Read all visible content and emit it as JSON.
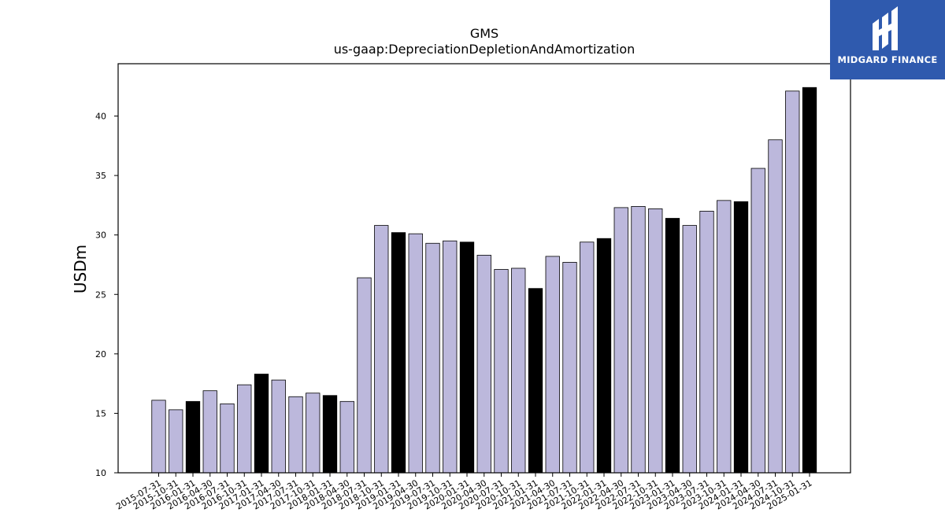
{
  "chart_data": {
    "type": "bar",
    "title": "GMS",
    "subtitle": "us-gaap:DepreciationDepletionAndAmortization",
    "xlabel": "",
    "ylabel": "USDm",
    "ylim": [
      10,
      44.4
    ],
    "yticks": [
      10,
      15,
      20,
      25,
      30,
      35,
      40
    ],
    "categories": [
      "2015-07-31",
      "2015-10-31",
      "2016-01-31",
      "2016-04-30",
      "2016-07-31",
      "2016-10-31",
      "2017-01-31",
      "2017-04-30",
      "2017-07-31",
      "2017-10-31",
      "2018-01-31",
      "2018-04-30",
      "2018-07-31",
      "2018-10-31",
      "2019-01-31",
      "2019-04-30",
      "2019-07-31",
      "2019-10-31",
      "2020-01-31",
      "2020-04-30",
      "2020-07-31",
      "2020-10-31",
      "2021-01-31",
      "2021-04-30",
      "2021-07-31",
      "2021-10-31",
      "2022-01-31",
      "2022-04-30",
      "2022-07-31",
      "2022-10-31",
      "2023-01-31",
      "2023-04-30",
      "2023-07-31",
      "2023-10-31",
      "2024-01-31",
      "2024-04-30",
      "2024-07-31",
      "2024-10-31",
      "2025-01-31"
    ],
    "values": [
      16.1,
      15.3,
      16.0,
      16.9,
      15.8,
      17.4,
      18.3,
      17.8,
      16.4,
      16.7,
      16.5,
      16.0,
      26.4,
      30.8,
      30.2,
      30.1,
      29.3,
      29.5,
      29.4,
      28.3,
      27.1,
      27.2,
      25.5,
      28.2,
      27.7,
      29.4,
      29.7,
      32.3,
      32.4,
      32.2,
      31.4,
      30.8,
      32.0,
      32.9,
      32.8,
      35.6,
      38.0,
      42.1,
      42.4
    ],
    "highlighted": [
      2,
      6,
      10,
      14,
      18,
      22,
      26,
      30,
      34,
      38
    ],
    "colors": {
      "normal": "#bcb8dc",
      "highlight": "#000000",
      "edge": "#000000"
    }
  },
  "logo": {
    "text": "MIDGARD FINANCE",
    "background": "#2f5aae"
  }
}
